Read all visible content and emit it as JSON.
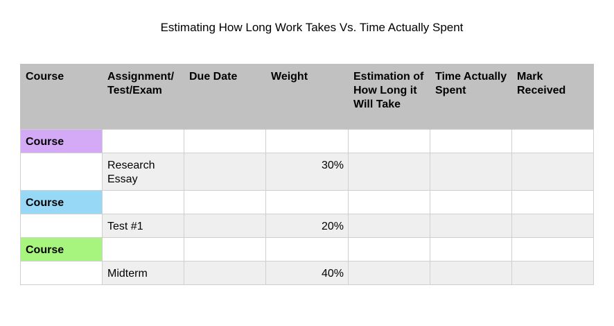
{
  "title": "Estimating How Long Work Takes Vs. Time Actually Spent",
  "table": {
    "headers": [
      "Course",
      "Assignment/ Test/Exam",
      "Due Date",
      "Weight",
      "Estimation of How Long it Will Take",
      "Time Actually Spent",
      "Mark Received"
    ],
    "rows": [
      {
        "kind": "course",
        "course": "Course",
        "color": "#d4a9f6"
      },
      {
        "kind": "item",
        "assignment": "Research Essay",
        "due_date": "",
        "weight": "30%",
        "estimation": "",
        "time_spent": "",
        "mark": ""
      },
      {
        "kind": "course",
        "course": "Course",
        "color": "#98d8f7"
      },
      {
        "kind": "item",
        "assignment": "Test #1",
        "due_date": "",
        "weight": "20%",
        "estimation": "",
        "time_spent": "",
        "mark": ""
      },
      {
        "kind": "course",
        "course": "Course",
        "color": "#a7f57e"
      },
      {
        "kind": "item",
        "assignment": "Midterm",
        "due_date": "",
        "weight": "40%",
        "estimation": "",
        "time_spent": "",
        "mark": ""
      }
    ]
  },
  "colors": {
    "header_bg": "#c0c1c0",
    "item_row_bg": "#efefef",
    "grid_line": "#cfcfcf"
  }
}
